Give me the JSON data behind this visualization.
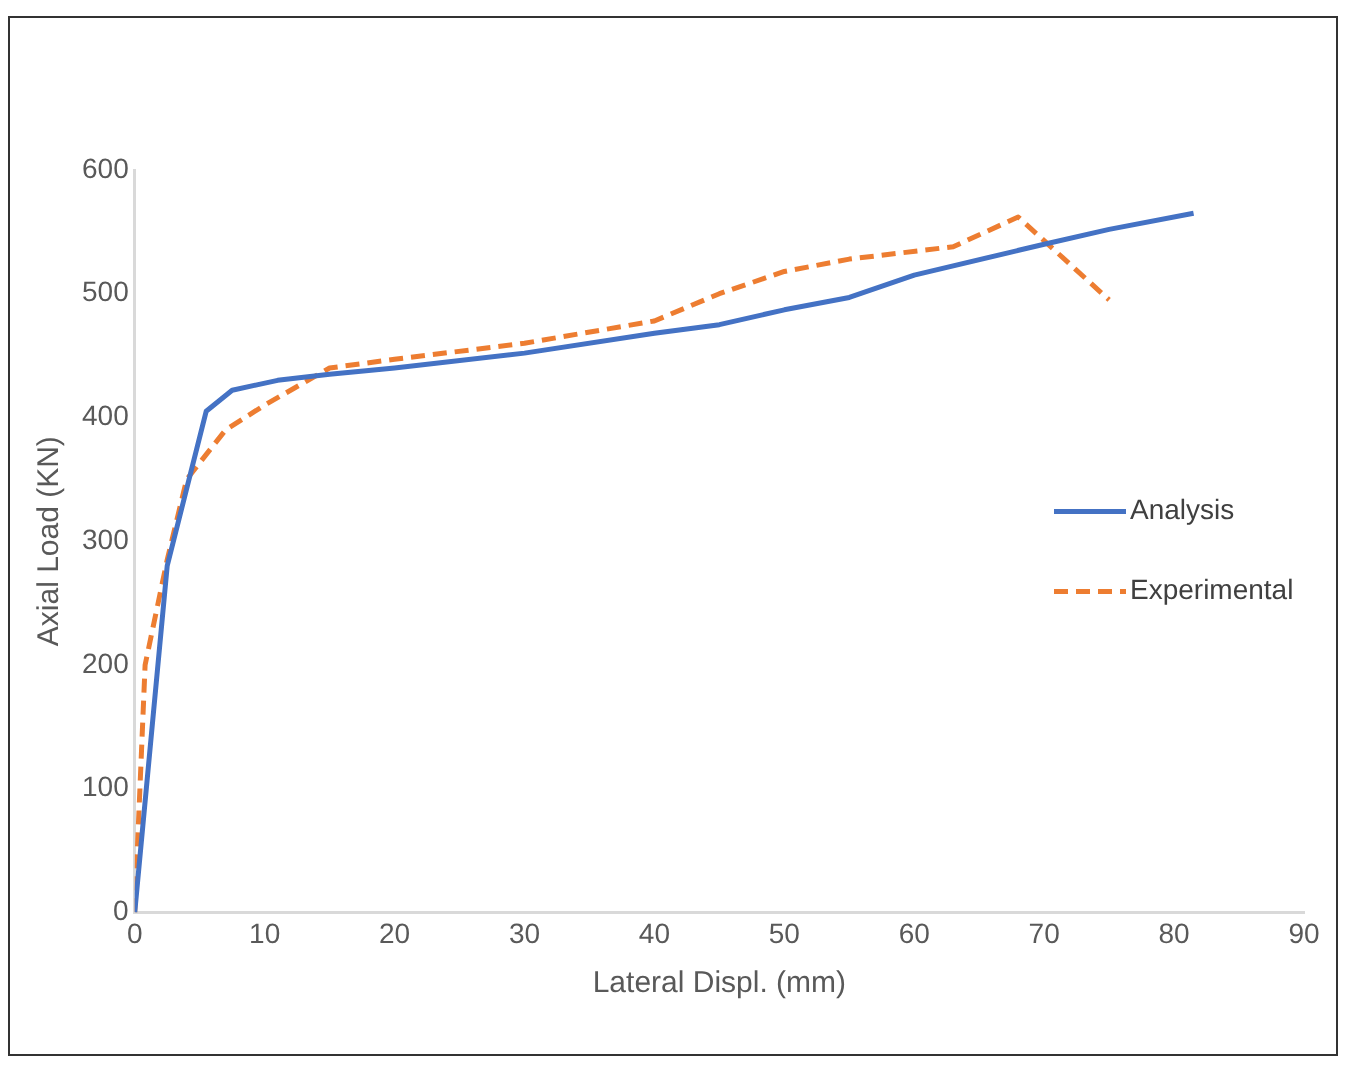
{
  "chart_data": {
    "type": "line",
    "xlabel": "Lateral Displ. (mm)",
    "ylabel": "Axial Load (KN)",
    "xlim": [
      0,
      90
    ],
    "xticks": [
      0,
      10,
      20,
      30,
      40,
      50,
      60,
      70,
      80,
      90
    ],
    "ylim": [
      0,
      600
    ],
    "yticks": [
      0,
      100,
      200,
      300,
      400,
      500,
      600
    ],
    "grid": false,
    "legend": "right",
    "marker": "none",
    "series": [
      {
        "name": "Analysis",
        "color": "#4472c4",
        "line_style": "solid",
        "x": [
          0,
          2.5,
          5.5,
          7.5,
          11,
          15,
          20,
          30,
          40,
          45,
          50,
          55,
          60,
          70,
          75,
          81.5
        ],
        "values": [
          0,
          280,
          405,
          422,
          430,
          435,
          440,
          452,
          468,
          475,
          487,
          497,
          515,
          540,
          552,
          565
        ]
      },
      {
        "name": "Experimental",
        "color": "#ed7d31",
        "line_style": "dashed",
        "x": [
          0,
          0.8,
          2.5,
          4,
          7,
          10,
          15,
          20,
          30,
          40,
          45,
          50,
          55,
          63,
          68,
          75
        ],
        "values": [
          0,
          200,
          285,
          350,
          390,
          410,
          440,
          447,
          460,
          478,
          500,
          518,
          528,
          538,
          562,
          495
        ]
      }
    ]
  }
}
